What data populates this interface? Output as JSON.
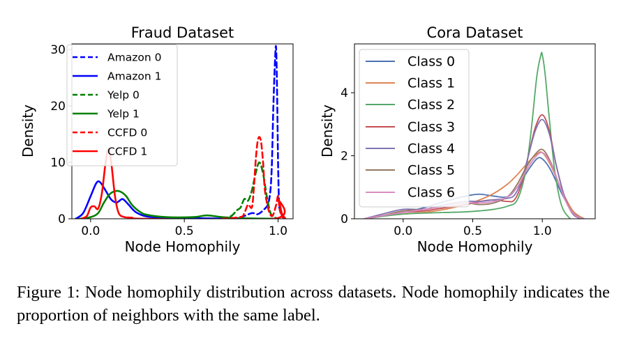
{
  "chart_data": [
    {
      "type": "line",
      "title": "Fraud Dataset",
      "xlabel": "Node Homophily",
      "ylabel": "Density",
      "xlim": [
        -0.1,
        1.08
      ],
      "ylim": [
        0,
        31
      ],
      "xticks": [
        0.0,
        0.5,
        1.0
      ],
      "xtick_labels": [
        "0.0",
        "0.5",
        "1.0"
      ],
      "yticks": [
        0,
        10,
        20,
        30
      ],
      "ytick_labels": [
        "0",
        "10",
        "20",
        "30"
      ],
      "legend_position": "upper-left",
      "series": [
        {
          "name": "Amazon 0",
          "color": "#0000ff",
          "dash": true,
          "x": [
            0.7,
            0.8,
            0.86,
            0.89,
            0.92,
            0.95,
            0.965,
            0.975,
            0.985,
            0.99,
            0.995,
            1.0,
            1.005,
            1.01,
            1.02,
            1.035
          ],
          "y": [
            0,
            0.3,
            1.0,
            0.8,
            1.5,
            3.0,
            8,
            20,
            29,
            30,
            22,
            10,
            3,
            1.5,
            0.5,
            0
          ]
        },
        {
          "name": "Amazon 1",
          "color": "#0000ff",
          "dash": false,
          "x": [
            -0.08,
            -0.04,
            0.0,
            0.03,
            0.05,
            0.08,
            0.11,
            0.14,
            0.17,
            0.2,
            0.24,
            0.3,
            0.4,
            0.55,
            0.8,
            1.0
          ],
          "y": [
            0,
            1.0,
            4.0,
            6.3,
            6.5,
            5.0,
            3.4,
            2.9,
            3.5,
            2.6,
            1.2,
            0.4,
            0.2,
            0.1,
            0,
            0
          ]
        },
        {
          "name": "Yelp 0",
          "color": "#008000",
          "dash": true,
          "x": [
            0.7,
            0.75,
            0.78,
            0.8,
            0.82,
            0.84,
            0.86,
            0.88,
            0.9,
            0.92,
            0.94,
            0.96,
            0.98,
            1.0
          ],
          "y": [
            0,
            0.5,
            1.5,
            2.0,
            3.5,
            3.2,
            5.0,
            8.0,
            10.0,
            8.0,
            4.0,
            1.0,
            0.3,
            0
          ]
        },
        {
          "name": "Yelp 1",
          "color": "#008000",
          "dash": false,
          "x": [
            -0.06,
            0.0,
            0.04,
            0.07,
            0.1,
            0.13,
            0.16,
            0.19,
            0.22,
            0.26,
            0.3,
            0.4,
            0.55,
            0.62,
            0.7,
            0.8,
            1.0
          ],
          "y": [
            0,
            0.3,
            1.0,
            2.8,
            4.3,
            4.9,
            4.8,
            4.0,
            2.5,
            1.3,
            0.7,
            0.3,
            0.3,
            0.6,
            0.3,
            0.1,
            0
          ]
        },
        {
          "name": "CCFD 0",
          "color": "#ff0000",
          "dash": true,
          "x": [
            0.7,
            0.8,
            0.82,
            0.84,
            0.86,
            0.87,
            0.88,
            0.89,
            0.9,
            0.91,
            0.92,
            0.93,
            0.95,
            0.97,
            0.99,
            1.0,
            1.01,
            1.03
          ],
          "y": [
            0,
            0.3,
            1.0,
            2.5,
            2.0,
            5.0,
            10.0,
            13.5,
            14.5,
            13.5,
            10.0,
            5.0,
            1.5,
            0.5,
            2.5,
            4.0,
            1.5,
            0
          ]
        },
        {
          "name": "CCFD 1",
          "color": "#ff0000",
          "dash": false,
          "x": [
            -0.05,
            -0.02,
            0.0,
            0.02,
            0.04,
            0.06,
            0.08,
            0.095,
            0.11,
            0.13,
            0.15,
            0.18,
            0.22,
            0.3,
            0.98,
            1.0,
            1.02,
            1.04
          ],
          "y": [
            0,
            0.5,
            2.0,
            2.2,
            1.8,
            4.5,
            10.0,
            12.3,
            10.0,
            4.0,
            1.0,
            0.3,
            0.2,
            0,
            0,
            3.5,
            1.0,
            0
          ]
        }
      ]
    },
    {
      "type": "line",
      "title": "Cora Dataset",
      "xlabel": "Node Homophily",
      "ylabel": "Density",
      "xlim": [
        -0.35,
        1.38
      ],
      "ylim": [
        0,
        5.55
      ],
      "xticks": [
        0.0,
        0.5,
        1.0
      ],
      "xtick_labels": [
        "0.0",
        "0.5",
        "1.0"
      ],
      "yticks": [
        0,
        2,
        4
      ],
      "ytick_labels": [
        "0",
        "2",
        "4"
      ],
      "legend_position": "upper-left",
      "series": [
        {
          "name": "Class 0",
          "color": "#4c72b0",
          "x": [
            -0.28,
            -0.15,
            0.0,
            0.15,
            0.3,
            0.45,
            0.55,
            0.65,
            0.75,
            0.82,
            0.9,
            0.96,
            1.0,
            1.06,
            1.14,
            1.22,
            1.3
          ],
          "y": [
            0,
            0.08,
            0.2,
            0.35,
            0.55,
            0.72,
            0.78,
            0.72,
            0.7,
            1.0,
            1.55,
            1.9,
            1.9,
            1.55,
            0.8,
            0.2,
            0
          ]
        },
        {
          "name": "Class 1",
          "color": "#dd8452",
          "x": [
            -0.28,
            -0.15,
            0.0,
            0.15,
            0.3,
            0.45,
            0.55,
            0.65,
            0.75,
            0.82,
            0.9,
            0.96,
            1.0,
            1.06,
            1.14,
            1.22,
            1.3
          ],
          "y": [
            0,
            0.08,
            0.15,
            0.2,
            0.3,
            0.45,
            0.6,
            0.8,
            1.1,
            1.4,
            1.8,
            2.05,
            2.1,
            1.7,
            0.9,
            0.25,
            0
          ]
        },
        {
          "name": "Class 2",
          "color": "#55a868",
          "x": [
            -0.28,
            -0.15,
            0.0,
            0.15,
            0.3,
            0.45,
            0.55,
            0.65,
            0.75,
            0.82,
            0.88,
            0.92,
            0.96,
            0.99,
            1.0,
            1.02,
            1.05,
            1.09,
            1.14,
            1.2
          ],
          "y": [
            0,
            0.08,
            0.15,
            0.18,
            0.2,
            0.22,
            0.25,
            0.3,
            0.4,
            0.6,
            1.5,
            2.8,
            4.5,
            5.2,
            5.2,
            4.6,
            3.2,
            1.5,
            0.4,
            0
          ]
        },
        {
          "name": "Class 3",
          "color": "#c44e52",
          "x": [
            -0.28,
            -0.15,
            0.0,
            0.15,
            0.3,
            0.45,
            0.55,
            0.65,
            0.75,
            0.8,
            0.85,
            0.9,
            0.95,
            1.0,
            1.05,
            1.1,
            1.16,
            1.22,
            1.28
          ],
          "y": [
            0,
            0.1,
            0.2,
            0.25,
            0.35,
            0.45,
            0.55,
            0.6,
            0.55,
            0.6,
            1.1,
            2.0,
            2.9,
            3.3,
            2.8,
            1.7,
            0.7,
            0.15,
            0
          ]
        },
        {
          "name": "Class 4",
          "color": "#8172b3",
          "x": [
            -0.28,
            -0.15,
            0.0,
            0.15,
            0.3,
            0.45,
            0.55,
            0.65,
            0.75,
            0.8,
            0.85,
            0.9,
            0.95,
            1.0,
            1.05,
            1.1,
            1.16,
            1.22,
            1.28
          ],
          "y": [
            0,
            0.15,
            0.3,
            0.3,
            0.45,
            0.55,
            0.55,
            0.6,
            0.65,
            0.75,
            1.2,
            2.0,
            2.8,
            3.15,
            2.7,
            1.7,
            0.7,
            0.15,
            0
          ]
        },
        {
          "name": "Class 5",
          "color": "#937860",
          "x": [
            -0.28,
            -0.15,
            0.0,
            0.15,
            0.3,
            0.45,
            0.55,
            0.65,
            0.75,
            0.82,
            0.88,
            0.94,
            1.0,
            1.06,
            1.12,
            1.18,
            1.24,
            1.3
          ],
          "y": [
            0,
            0.1,
            0.25,
            0.3,
            0.4,
            0.5,
            0.45,
            0.5,
            0.7,
            1.1,
            1.6,
            2.0,
            2.2,
            1.8,
            1.1,
            0.45,
            0.1,
            0
          ]
        },
        {
          "name": "Class 6",
          "color": "#da8bc3",
          "x": [
            -0.28,
            -0.15,
            0.0,
            0.15,
            0.3,
            0.45,
            0.55,
            0.65,
            0.75,
            0.82,
            0.88,
            0.94,
            1.0,
            1.06,
            1.12,
            1.18,
            1.24,
            1.3
          ],
          "y": [
            0,
            0.1,
            0.2,
            0.3,
            0.4,
            0.5,
            0.5,
            0.55,
            0.7,
            1.0,
            1.5,
            1.9,
            2.1,
            1.75,
            1.1,
            0.45,
            0.1,
            0
          ]
        }
      ]
    }
  ],
  "caption": "Figure 1: Node homophily distribution across datasets. Node homophily indicates the proportion of neighbors with the same label."
}
